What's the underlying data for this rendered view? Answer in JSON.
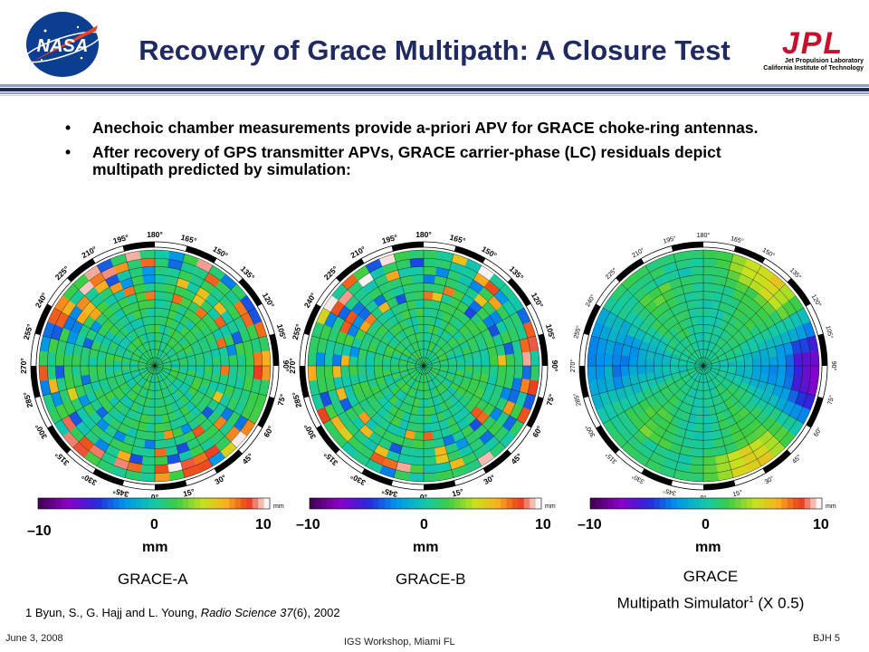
{
  "slide": {
    "title": "Recovery of Grace Multipath: A Closure Test",
    "bullets": [
      "Anechoic chamber measurements provide a-priori APV for GRACE choke-ring antennas.",
      "After recovery of GPS transmitter APVs, GRACE carrier-phase (LC) residuals depict multipath predicted by simulation:"
    ],
    "bullet_marker": "•",
    "logos": {
      "nasa": "NASA",
      "jpl": "JPL",
      "jpl_line1": "Jet Propulsion Laboratory",
      "jpl_line2": "California Institute of Technology"
    },
    "colors": {
      "title": "#1f2a60",
      "rule_dark": "#1f2a60",
      "rule_light": "#8e9fc7"
    }
  },
  "panels": [
    {
      "name": "GRACE-A",
      "caption": "GRACE-A",
      "seed": 11
    },
    {
      "name": "GRACE-B",
      "caption": "GRACE-B",
      "seed": 29
    },
    {
      "name": "GRACE Multipath Simulator",
      "caption_line1": "GRACE",
      "caption_line2": "Multipath Simulator",
      "caption_sup": "1",
      "caption_tail": " (X 0.5)",
      "seed": 47
    }
  ],
  "azimuth_labels": [
    "0°",
    "15°",
    "30°",
    "45°",
    "60°",
    "75°",
    "90°",
    "105°",
    "120°",
    "135°",
    "150°",
    "165°",
    "180°",
    "195°",
    "210°",
    "225°",
    "240°",
    "255°",
    "270°",
    "285°",
    "300°",
    "315°",
    "330°",
    "345°"
  ],
  "colorbar": {
    "min_label": "–10",
    "mid_label": "0",
    "max_label": "10",
    "unit_label": "mm",
    "unit_small": "mm"
  },
  "footnote": {
    "prefix": "1 Byun, S., G. Hajj and L. Young, ",
    "journal": "Radio Science 37",
    "suffix": "(6), 2002"
  },
  "footer": {
    "date": "June 3, 2008",
    "event": "IGS Workshop, Miami FL",
    "page": "BJH 5"
  }
}
